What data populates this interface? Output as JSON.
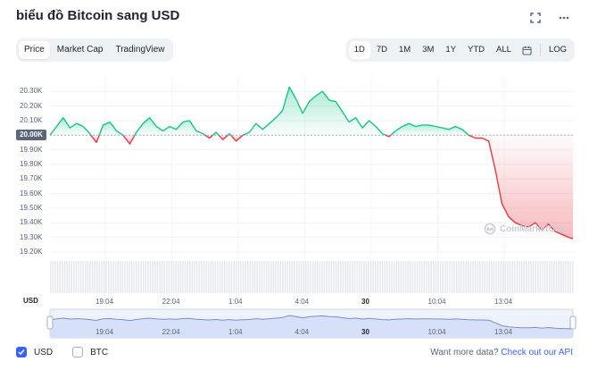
{
  "header": {
    "title": "biểu đồ Bitcoin sang USD"
  },
  "tabs": [
    {
      "label": "Price",
      "active": true
    },
    {
      "label": "Market Cap",
      "active": false
    },
    {
      "label": "TradingView",
      "active": false
    }
  ],
  "ranges": [
    {
      "label": "1D",
      "active": true
    },
    {
      "label": "7D",
      "active": false
    },
    {
      "label": "1M",
      "active": false
    },
    {
      "label": "3M",
      "active": false
    },
    {
      "label": "1Y",
      "active": false
    },
    {
      "label": "YTD",
      "active": false
    },
    {
      "label": "ALL",
      "active": false
    }
  ],
  "log_label": "LOG",
  "current_price_label": "20.00K",
  "axis_currency": "USD",
  "watermark": "CoinMarketCap",
  "legend": {
    "usd": {
      "label": "USD",
      "checked": true
    },
    "btc": {
      "label": "BTC",
      "checked": false
    }
  },
  "footer": {
    "more_text": "Want more data?",
    "api_link": "Check out our API"
  },
  "colors": {
    "up": "#16c784",
    "down": "#ea3943",
    "accent": "#3861fb"
  },
  "chart_data": {
    "type": "line",
    "baseline": 20000,
    "ylim": [
      19150,
      20400
    ],
    "y_ticks": [
      "20.30K",
      "20.20K",
      "20.10K",
      "20.00K",
      "19.90K",
      "19.80K",
      "19.70K",
      "19.60K",
      "19.50K",
      "19.40K",
      "19.30K",
      "19.20K"
    ],
    "y_tick_values": [
      20300,
      20200,
      20100,
      20000,
      19900,
      19800,
      19700,
      19600,
      19500,
      19400,
      19300,
      19200
    ],
    "x_ticks": [
      "19:04",
      "22:04",
      "1:04",
      "4:04",
      "30",
      "10:04",
      "13:04"
    ],
    "x_tick_positions": [
      2.5,
      5.5,
      8.5,
      11.5,
      14.5,
      17.5,
      20.5
    ],
    "xlim": [
      0,
      23.6
    ],
    "x": [
      0,
      0.3,
      0.6,
      0.9,
      1.2,
      1.5,
      1.8,
      2.1,
      2.4,
      2.7,
      3.0,
      3.3,
      3.6,
      3.9,
      4.2,
      4.5,
      4.8,
      5.1,
      5.4,
      5.7,
      6.0,
      6.3,
      6.6,
      6.9,
      7.2,
      7.5,
      7.8,
      8.1,
      8.4,
      8.7,
      9.0,
      9.3,
      9.6,
      9.9,
      10.2,
      10.5,
      10.8,
      11.1,
      11.4,
      11.7,
      12.0,
      12.3,
      12.6,
      12.9,
      13.2,
      13.5,
      13.8,
      14.1,
      14.4,
      14.7,
      15.0,
      15.3,
      15.6,
      15.9,
      16.2,
      16.5,
      16.8,
      17.1,
      17.4,
      17.7,
      18.0,
      18.3,
      18.6,
      18.9,
      19.2,
      19.5,
      19.8,
      20.1,
      20.4,
      20.7,
      21.0,
      21.3,
      21.6,
      21.9,
      22.2,
      22.5,
      22.8,
      23.1,
      23.4,
      23.6
    ],
    "values": [
      20000,
      20060,
      20120,
      20050,
      20080,
      20060,
      20010,
      19950,
      20070,
      20090,
      20030,
      20000,
      19940,
      20020,
      20080,
      20120,
      20060,
      20030,
      20060,
      20040,
      20090,
      20100,
      20030,
      20010,
      19980,
      20020,
      19970,
      20010,
      19960,
      20000,
      20020,
      20080,
      20040,
      20080,
      20120,
      20170,
      20330,
      20250,
      20150,
      20230,
      20270,
      20300,
      20240,
      20230,
      20160,
      20090,
      20120,
      20050,
      20100,
      20060,
      20010,
      19990,
      20030,
      20060,
      20080,
      20060,
      20070,
      20070,
      20060,
      20050,
      20040,
      20060,
      20040,
      20000,
      19980,
      19980,
      19960,
      19760,
      19530,
      19440,
      19400,
      19380,
      19370,
      19400,
      19350,
      19390,
      19340,
      19320,
      19300,
      19290
    ],
    "volume_ticks": "uniform"
  }
}
